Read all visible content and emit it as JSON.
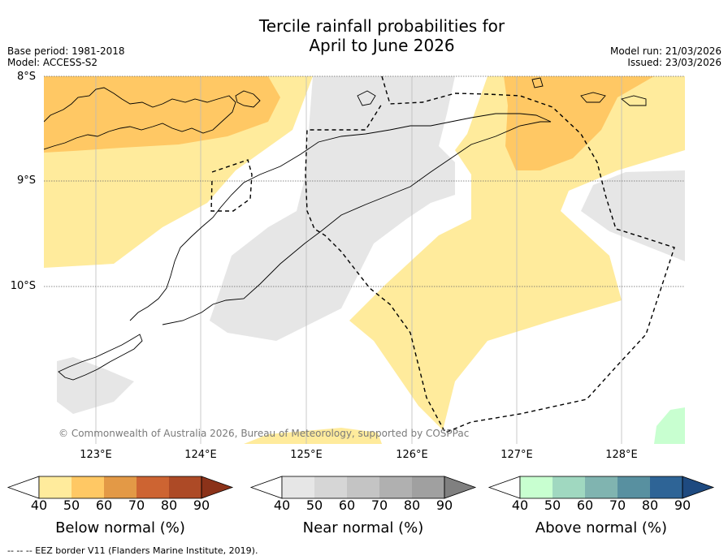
{
  "title": {
    "line1": "Tercile rainfall probabilities for",
    "line2": "April to June 2026"
  },
  "meta": {
    "base_period": "Base period: 1981-2018",
    "model": "Model: ACCESS-S2",
    "model_run": "Model run: 21/03/2026",
    "issued": "Issued: 23/03/2026"
  },
  "map": {
    "lat_labels": [
      "8°S",
      "9°S",
      "10°S"
    ],
    "lon_labels": [
      "123°E",
      "124°E",
      "125°E",
      "126°E",
      "127°E",
      "128°E"
    ],
    "credit": "© Commonwealth of Australia 2026, Bureau of Meteorology, supported by COSPPac"
  },
  "legend": {
    "ticks": [
      "40",
      "50",
      "60",
      "70",
      "80",
      "90"
    ],
    "below": {
      "label": "Below normal (%)",
      "colors": [
        "#ffeb9c",
        "#ffc864",
        "#e39946",
        "#cd6432",
        "#ad4a26",
        "#8b3219"
      ]
    },
    "near": {
      "label": "Near normal (%)",
      "colors": [
        "#e6e6e6",
        "#d6d6d6",
        "#c4c4c4",
        "#b0b0b0",
        "#a0a0a0",
        "#808080"
      ]
    },
    "above": {
      "label": "Above normal (%)",
      "colors": [
        "#c8ffd0",
        "#a0d8c0",
        "#80b4b0",
        "#5890a0",
        "#2e6496",
        "#1e4a80"
      ]
    }
  },
  "footer": "--  --  -- EEZ border V11 (Flanders Marine Institute, 2019)."
}
